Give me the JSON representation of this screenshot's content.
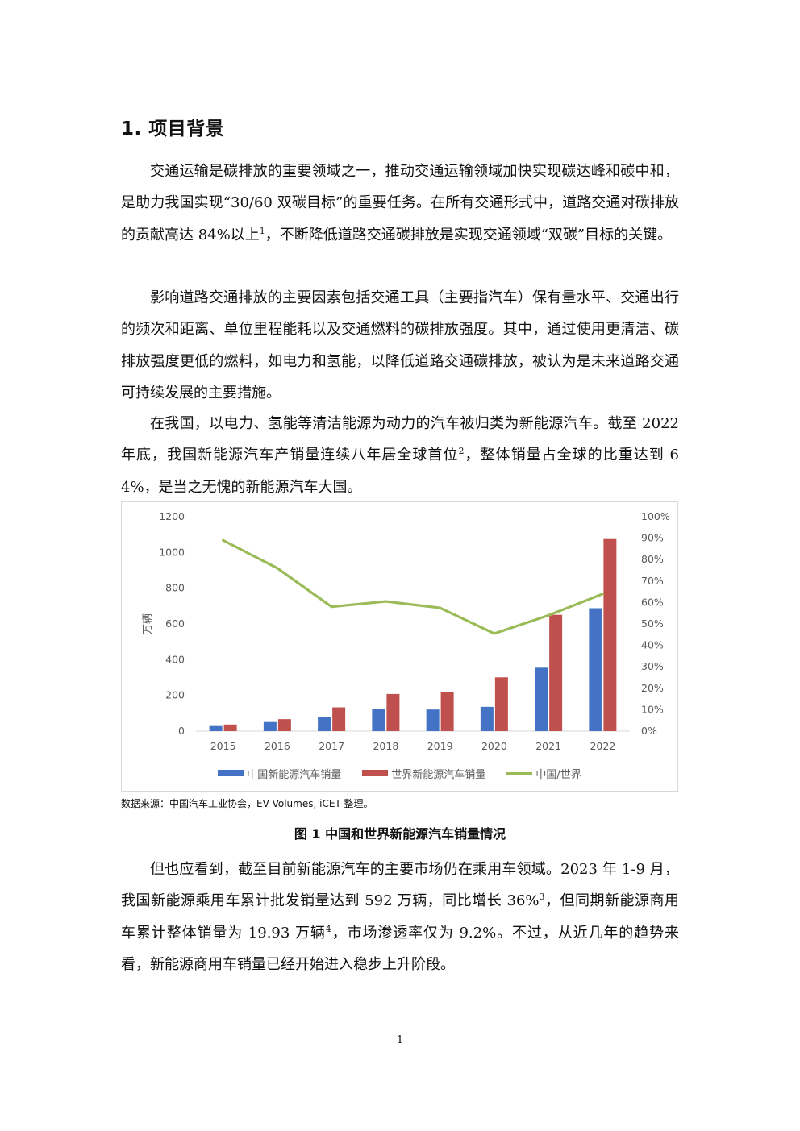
{
  "section": {
    "heading": "1. 项目背景"
  },
  "paragraphs": {
    "p1": {
      "text": "交通运输是碳排放的重要领域之一，推动交通运输领域加快实现碳达峰和碳中和，是助力我国实现“30/60 双碳目标”的重要任务。在所有交通形式中，道路交通对碳排放的贡献高达 84%以上",
      "sup": "1",
      "text2": "，不断降低道路交通碳排放是实现交通领域“双碳”目标的关键。"
    },
    "p2": {
      "text": "影响道路交通排放的主要因素包括交通工具（主要指汽车）保有量水平、交通出行的频次和距离、单位里程能耗以及交通燃料的碳排放强度。其中，通过使用更清洁、碳排放强度更低的燃料，如电力和氢能，以降低道路交通碳排放，被认为是未来道路交通可持续发展的主要措施。"
    },
    "p3": {
      "text": "在我国，以电力、氢能等清洁能源为动力的汽车被归类为新能源汽车。截至 2022 年底，我国新能源汽车产销量连续八年居全球首位",
      "sup": "2",
      "text2": "，整体销量占全球的比重达到 64%，是当之无愧的新能源汽车大国。"
    },
    "p4": {
      "text": "但也应看到，截至目前新能源汽车的主要市场仍在乘用车领域。2023 年 1-9 月，我国新能源乘用车累计批发销量达到 592 万辆，同比增长 36%",
      "sup": "3",
      "text2": "，但同期新能源商用车累计整体销量为 19.93 万辆",
      "sup2": "4",
      "text3": "，市场渗透率仅为 9.2%。不过，从近几年的趋势来看，新能源商用车销量已经开始进入稳步上升阶段。"
    }
  },
  "chart_data": {
    "type": "bar",
    "categories": [
      "2015",
      "2016",
      "2017",
      "2018",
      "2019",
      "2020",
      "2021",
      "2022"
    ],
    "series": [
      {
        "name": "中国新能源汽车销量",
        "type": "bar",
        "axis": "left",
        "color": "#4472C4",
        "values": [
          33,
          51,
          78,
          126,
          121,
          136,
          355,
          688
        ]
      },
      {
        "name": "世界新能源汽车销量",
        "type": "bar",
        "axis": "left",
        "color": "#C0504D",
        "values": [
          37,
          67,
          133,
          208,
          218,
          301,
          651,
          1075
        ]
      },
      {
        "name": "中国/世界",
        "type": "line",
        "axis": "right",
        "color": "#9BBB59",
        "values": [
          0.89,
          0.76,
          0.58,
          0.605,
          0.575,
          0.455,
          0.54,
          0.64
        ]
      }
    ],
    "ylabel": "万辆",
    "ylim": [
      0,
      1200
    ],
    "y_ticks": [
      "0",
      "200",
      "400",
      "600",
      "800",
      "1000",
      "1200"
    ],
    "y2lim": [
      0,
      1
    ],
    "y2_ticks": [
      "0%",
      "10%",
      "20%",
      "30%",
      "40%",
      "50%",
      "60%",
      "70%",
      "80%",
      "90%",
      "100%"
    ],
    "grid": false,
    "legend_position": "bottom"
  },
  "figure": {
    "source": "数据来源：中国汽车工业协会，EV Volumes, iCET 整理。",
    "caption": "图 1  中国和世界新能源汽车销量情况"
  },
  "page": {
    "number": "1"
  }
}
